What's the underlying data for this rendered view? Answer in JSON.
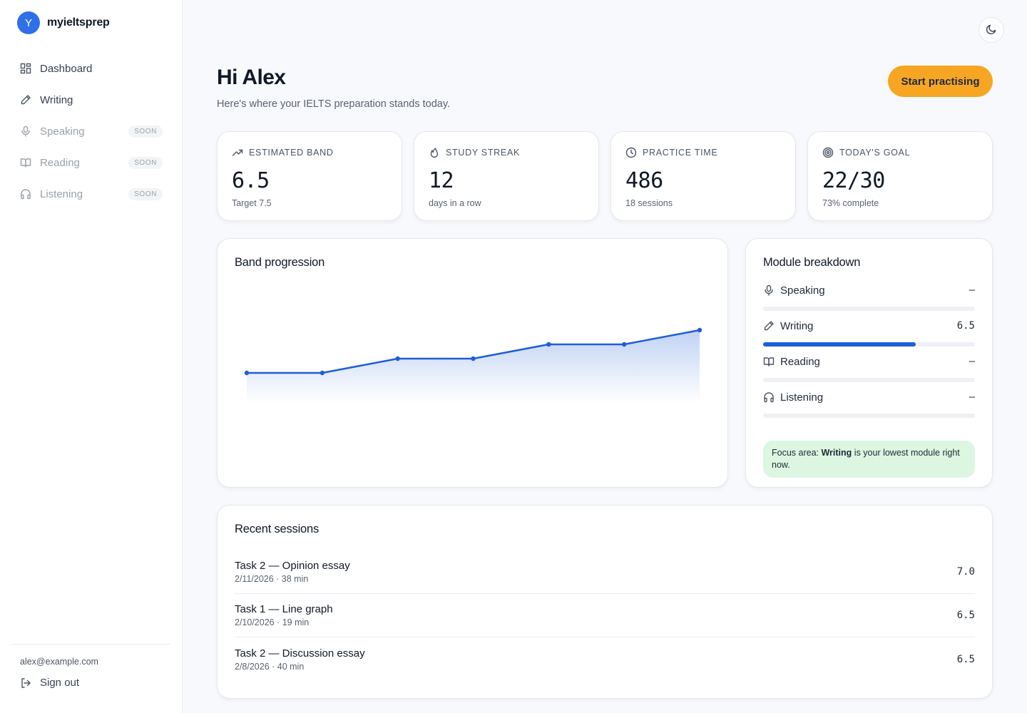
{
  "brand": {
    "initial": "Y",
    "name": "myieltsprep"
  },
  "nav": [
    {
      "label": "Dashboard",
      "icon": "dashboard-icon",
      "soon": ""
    },
    {
      "label": "Writing",
      "icon": "pencil-icon",
      "soon": ""
    },
    {
      "label": "Speaking",
      "icon": "microphone-icon",
      "soon": "SOON"
    },
    {
      "label": "Reading",
      "icon": "book-icon",
      "soon": "SOON"
    },
    {
      "label": "Listening",
      "icon": "headphones-icon",
      "soon": "SOON"
    }
  ],
  "user": {
    "email": "alex@example.com",
    "signout_label": "Sign out"
  },
  "header": {
    "greeting": "Hi Alex",
    "subtitle": "Here's where your IELTS preparation stands today.",
    "cta_label": "Start practising",
    "theme_icon": "moon-icon"
  },
  "stats": [
    {
      "label": "ESTIMATED BAND",
      "icon": "trending-up-icon",
      "value": "6.5",
      "sub": "Target 7.5"
    },
    {
      "label": "STUDY STREAK",
      "icon": "flame-icon",
      "value": "12",
      "sub": "days in a row"
    },
    {
      "label": "PRACTICE TIME",
      "icon": "clock-icon",
      "value": "486",
      "sub": "18 sessions"
    },
    {
      "label": "TODAY'S GOAL",
      "icon": "target-icon",
      "value": "22/30",
      "sub": "73% complete"
    }
  ],
  "band_progression": {
    "title": "Band progression",
    "chart_data": {
      "type": "area",
      "title": "Band progression",
      "x": [
        1,
        2,
        3,
        4,
        5,
        6,
        7
      ],
      "values": [
        5.5,
        5.5,
        6.0,
        6.0,
        6.5,
        6.5,
        7.0
      ],
      "ylim": [
        4.0,
        8.0
      ],
      "grid": false,
      "color": "#1f5ed8"
    }
  },
  "modules": {
    "title": "Module breakdown",
    "items": [
      {
        "name": "Speaking",
        "icon": "microphone-icon",
        "score": "–",
        "progress": 0
      },
      {
        "name": "Writing",
        "icon": "pencil-icon",
        "score": "6.5",
        "progress": 0.72
      },
      {
        "name": "Reading",
        "icon": "book-icon",
        "score": "–",
        "progress": 0
      },
      {
        "name": "Listening",
        "icon": "headphones-icon",
        "score": "–",
        "progress": 0
      }
    ],
    "focus": {
      "prefix": "Focus area: ",
      "module": "Writing",
      "suffix": " is your lowest module right now."
    }
  },
  "sessions": {
    "title": "Recent sessions",
    "items": [
      {
        "title": "Task 2 — Opinion essay",
        "meta": "2/11/2026 · 38 min",
        "band": "7.0"
      },
      {
        "title": "Task 1 — Line graph",
        "meta": "2/10/2026 · 19 min",
        "band": "6.5"
      },
      {
        "title": "Task 2 — Discussion essay",
        "meta": "2/8/2026 · 40 min",
        "band": "6.5"
      }
    ]
  }
}
